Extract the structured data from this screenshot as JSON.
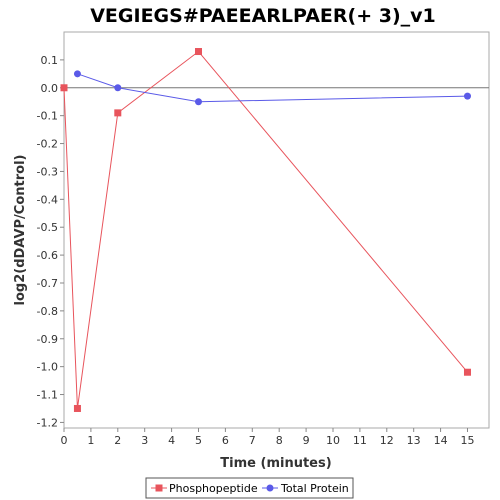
{
  "chart_data": {
    "type": "line",
    "title": "VEGIEGS#PAEEARLPAER(+ 3)_v1",
    "xlabel": "Time (minutes)",
    "ylabel": "log2(dDAVP/Control)",
    "xlim": [
      0,
      15.8
    ],
    "ylim": [
      -1.22,
      0.2
    ],
    "xticks": [
      0,
      1,
      2,
      3,
      4,
      5,
      6,
      7,
      8,
      9,
      10,
      11,
      12,
      13,
      14,
      15
    ],
    "yticks": [
      0.1,
      0.0,
      -0.1,
      -0.2,
      -0.3,
      -0.4,
      -0.5,
      -0.6,
      -0.7,
      -0.8,
      -0.9,
      -1.0,
      -1.1,
      -1.2
    ],
    "ytick_labels": [
      "0.1",
      "0.0",
      "-0.1",
      "-0.2",
      "-0.3",
      "-0.4",
      "-0.5",
      "-0.6",
      "-0.7",
      "-0.8",
      "-0.9",
      "-1.0",
      "-1.1",
      "-1.2"
    ],
    "grid": false,
    "zero_line": true,
    "legend_position": "bottom",
    "series": [
      {
        "name": "Phosphopeptide",
        "color": "#e8545c",
        "marker": "square",
        "x": [
          0,
          0.5,
          2,
          5,
          15
        ],
        "y": [
          0.0,
          -1.15,
          -0.09,
          0.13,
          -1.02
        ]
      },
      {
        "name": "Total Protein",
        "color": "#5a5ae8",
        "marker": "circle",
        "x": [
          0.5,
          2,
          5,
          15
        ],
        "y": [
          0.05,
          0.0,
          -0.05,
          -0.03
        ]
      }
    ]
  }
}
